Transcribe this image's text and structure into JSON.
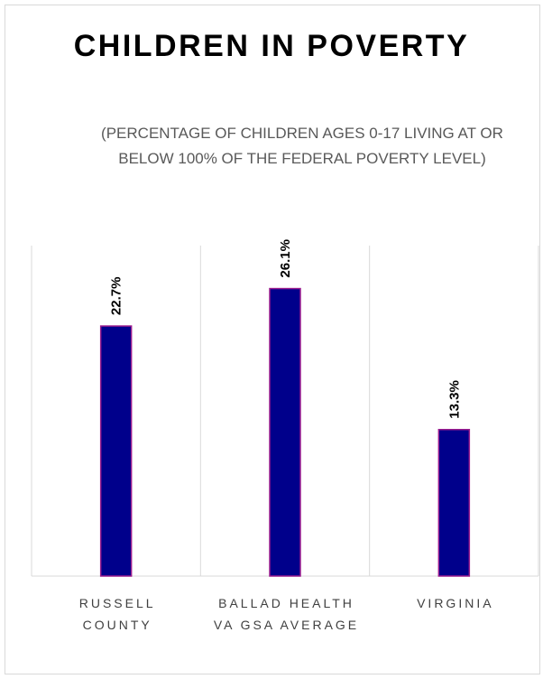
{
  "chart_data": {
    "type": "bar",
    "title": "CHILDREN IN POVERTY",
    "subtitle": "(PERCENTAGE OF CHILDREN AGES 0-17 LIVING AT OR BELOW 100% OF THE FEDERAL POVERTY LEVEL)",
    "categories": [
      "RUSSELL COUNTY",
      "BALLAD HEALTH VA GSA AVERAGE",
      "VIRGINIA"
    ],
    "values": [
      22.7,
      26.1,
      13.3
    ],
    "value_labels": [
      "22.7%",
      "26.1%",
      "13.3%"
    ],
    "color": "#00008b",
    "ylim": [
      0,
      30
    ]
  }
}
